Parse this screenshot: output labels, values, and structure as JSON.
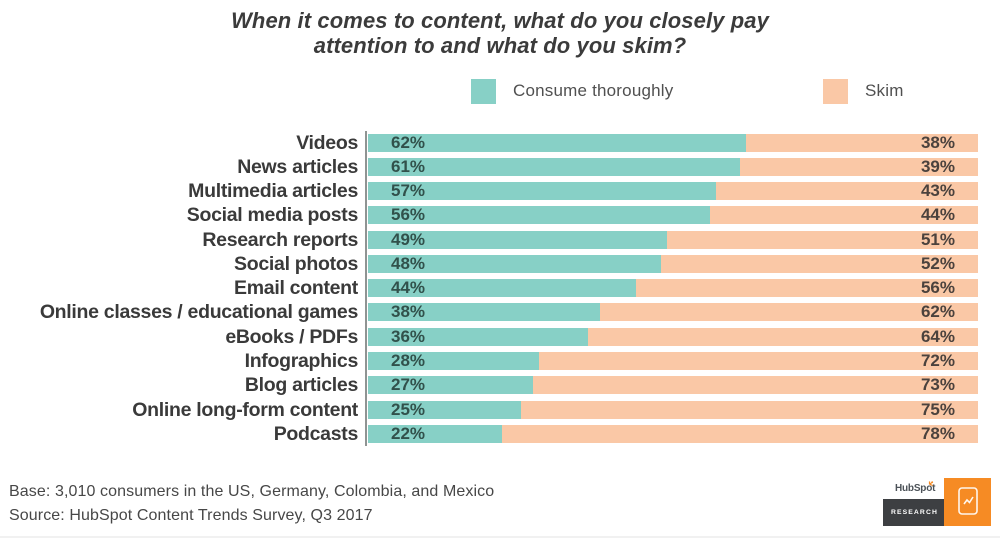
{
  "title_lines": [
    "When it comes to content, what do you closely pay",
    "attention to and what do you skim?"
  ],
  "chart_data": {
    "type": "bar",
    "orientation": "horizontal",
    "stacked": true,
    "title": "When it comes to content, what do you closely pay attention to and what do you skim?",
    "value_suffix": "%",
    "xlim": [
      0,
      100
    ],
    "categories": [
      "Videos",
      "News articles",
      "Multimedia articles",
      "Social media posts",
      "Research reports",
      "Social photos",
      "Email content",
      "Online classes / educational games",
      "eBooks / PDFs",
      "Infographics",
      "Blog articles",
      "Online long-form content",
      "Podcasts"
    ],
    "series": [
      {
        "name": "Consume thoroughly",
        "color": "#87d0c6",
        "values": [
          62,
          61,
          57,
          56,
          49,
          48,
          44,
          38,
          36,
          28,
          27,
          25,
          22
        ]
      },
      {
        "name": "Skim",
        "color": "#fac8a6",
        "values": [
          38,
          39,
          43,
          44,
          51,
          52,
          56,
          62,
          64,
          72,
          73,
          75,
          78
        ]
      }
    ],
    "legend": [
      {
        "label": "Consume thoroughly",
        "color": "#87d0c6"
      },
      {
        "label": "Skim",
        "color": "#fac8a6"
      }
    ],
    "legend_position": "top"
  },
  "footer": {
    "base_note": "Base: 3,010 consumers in the US, Germany, Colombia, and Mexico",
    "source_note": "Source: HubSpot Content Trends Survey, Q3 2017"
  },
  "logo": {
    "wordmark_left": "HubSp",
    "wordmark_o": "o",
    "wordmark_right": "t",
    "research_label": "RESEARCH",
    "orange": "#f68b24",
    "dark": "#3d3f42"
  }
}
